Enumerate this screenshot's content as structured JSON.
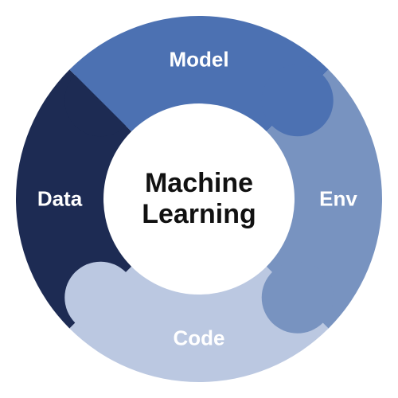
{
  "diagram": {
    "type": "donut-cycle",
    "center_title_line1": "Machine",
    "center_title_line2": "Learning",
    "center_title_fontsize": 34,
    "center_title_color": "#111111",
    "background_color": "#ffffff",
    "outer_radius": 230,
    "inner_radius": 120,
    "tab_radius": 45,
    "segments": [
      {
        "id": "model",
        "label": "Model",
        "fill": "#4c71b2",
        "text_color": "#ffffff",
        "start_deg": -45,
        "end_deg": 45,
        "label_fontsize": 26
      },
      {
        "id": "env",
        "label": "Env",
        "fill": "#7893c0",
        "text_color": "#ffffff",
        "start_deg": 45,
        "end_deg": 135,
        "label_fontsize": 26
      },
      {
        "id": "code",
        "label": "Code",
        "fill": "#bbc8e1",
        "text_color": "#ffffff",
        "start_deg": 135,
        "end_deg": 225,
        "label_fontsize": 26
      },
      {
        "id": "data",
        "label": "Data",
        "fill": "#1d2b53",
        "text_color": "#ffffff",
        "start_deg": 225,
        "end_deg": 315,
        "label_fontsize": 26
      }
    ]
  }
}
